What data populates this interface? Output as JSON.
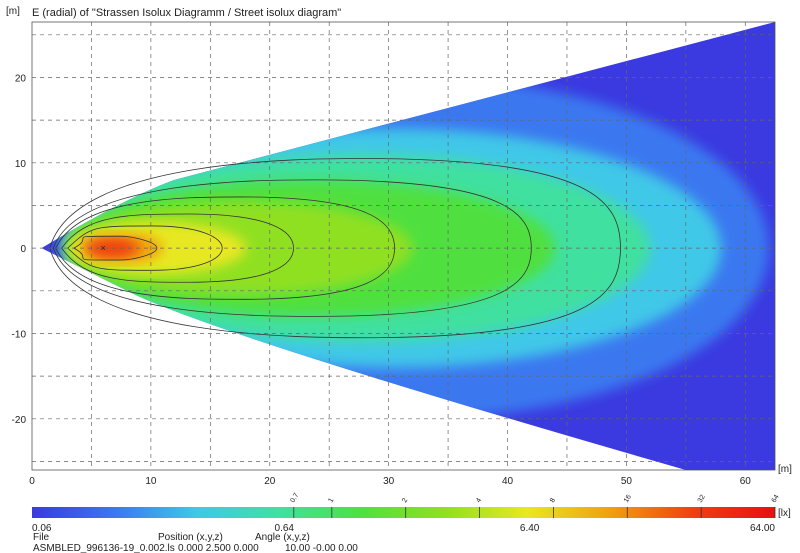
{
  "chart_data": {
    "type": "heatmap",
    "title": "E (radial) of \"Strassen Isolux Diagramm / Street isolux diagram\"",
    "xlabel": "[m]",
    "ylabel": "[m]",
    "xlim": [
      0,
      62.5
    ],
    "ylim": [
      -26,
      26.5
    ],
    "x_ticks": [
      0,
      10,
      20,
      30,
      40,
      50,
      60
    ],
    "y_ticks": [
      -20,
      -10,
      0,
      10,
      20
    ],
    "grid": true,
    "contour_levels": [
      "0.7",
      "1",
      "2",
      "4",
      "8",
      "16",
      "32",
      "64"
    ],
    "colorbar": {
      "unit": "[lx]",
      "scale": "log",
      "min": 0.06,
      "max": 64,
      "labels": [
        "0.06",
        "0.64",
        "6.40",
        "64.00"
      ],
      "colors": [
        "#3a3ae0",
        "#3a78f0",
        "#40c8e8",
        "#40e0a0",
        "#50e040",
        "#90e020",
        "#e8e820",
        "#f0a010",
        "#f04010",
        "#e81010"
      ]
    },
    "luminaire_position": [
      6,
      0
    ]
  },
  "footer": {
    "file_label": "File",
    "position_label": "Position (x,y,z)",
    "angle_label": "Angle (x,y,z)",
    "file_value": "ASMBLED_996136-19_0.002.ls",
    "position_value": "0.000  2.500  0.000",
    "angle_value": "10.00  -0.00  0.00"
  }
}
